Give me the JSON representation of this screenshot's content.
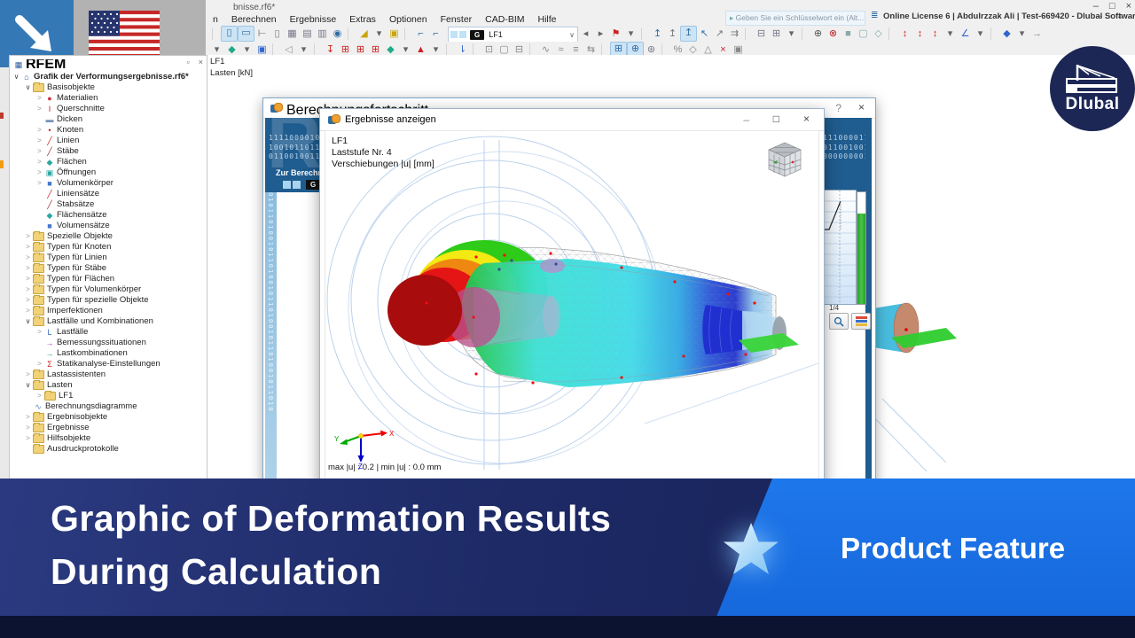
{
  "chrome": {
    "title": "bnisse.rf6*",
    "menus": [
      "n",
      "Berechnen",
      "Ergebnisse",
      "Extras",
      "Optionen",
      "Fenster",
      "CAD-BIM",
      "Hilfe"
    ],
    "search_placeholder": "Geben Sie ein Schlüsselwort ein (Alt...",
    "license": "Online License 6 | Abdulrzzak Ali | Test-669420 - Dlubal Software GmbH",
    "win_min": "–",
    "win_max": "□",
    "win_close": "×",
    "lic_min": "–",
    "lic_float": "▫",
    "lic_close": "×",
    "combo": {
      "badge": "G",
      "value": "LF1",
      "arrow": "∨"
    }
  },
  "toolbar1": [
    {
      "g": "↷",
      "c": "#666"
    },
    {
      "g": "▾",
      "c": "#666"
    },
    {
      "s": 1
    },
    {
      "g": "▯",
      "c": "#2e6da4",
      "a": 1
    },
    {
      "g": "▭",
      "c": "#2e6da4",
      "a": 1
    },
    {
      "g": "⊢",
      "c": "#666"
    },
    {
      "g": "▯",
      "c": "#778"
    },
    {
      "g": "▦",
      "c": "#778"
    },
    {
      "g": "▤",
      "c": "#778"
    },
    {
      "g": "▥",
      "c": "#778"
    },
    {
      "g": "◉",
      "c": "#2e6da4"
    },
    {
      "s": 1
    },
    {
      "g": "◢",
      "c": "#c9a50a"
    },
    {
      "g": "▾",
      "c": "#666"
    },
    {
      "g": "▣",
      "c": "#c9a50a"
    },
    {
      "s": 1
    },
    {
      "g": "⌐",
      "c": "#2e6da4"
    },
    {
      "g": "⌐",
      "c": "#2e6da4"
    }
  ],
  "toolbar1b": [
    {
      "g": "◂",
      "c": "#666"
    },
    {
      "g": "▸",
      "c": "#666"
    },
    {
      "g": "⚑",
      "c": "#c22"
    },
    {
      "g": "▾",
      "c": "#666"
    },
    {
      "s": 1
    },
    {
      "g": "↥",
      "c": "#2e6da4"
    },
    {
      "g": "↥",
      "c": "#777"
    },
    {
      "g": "↥",
      "c": "#2e6da4",
      "a": 1
    },
    {
      "g": "↖",
      "c": "#2e6da4"
    },
    {
      "g": "↗",
      "c": "#777"
    },
    {
      "g": "⇉",
      "c": "#777"
    },
    {
      "s": 1
    },
    {
      "g": "⊟",
      "c": "#778"
    },
    {
      "g": "⊞",
      "c": "#778"
    },
    {
      "g": "▾",
      "c": "#666"
    },
    {
      "s": 1
    },
    {
      "g": "⊕",
      "c": "#555"
    },
    {
      "g": "⊗",
      "c": "#b22"
    },
    {
      "g": "■",
      "c": "#8aa"
    },
    {
      "g": "▢",
      "c": "#8aa"
    },
    {
      "g": "◇",
      "c": "#8aa"
    },
    {
      "s": 1
    },
    {
      "g": "↕",
      "c": "#c22"
    },
    {
      "g": "↕",
      "c": "#c22"
    },
    {
      "g": "↕",
      "c": "#c22"
    },
    {
      "g": "▾",
      "c": "#666"
    },
    {
      "g": "∠",
      "c": "#36c"
    },
    {
      "g": "▾",
      "c": "#666"
    },
    {
      "s": 1
    },
    {
      "g": "◆",
      "c": "#36c"
    },
    {
      "g": "▾",
      "c": "#666"
    },
    {
      "g": "→",
      "c": "#888"
    },
    {
      "g": "▾",
      "c": "#666"
    },
    {
      "g": "×",
      "c": "#c22"
    },
    {
      "g": "■",
      "c": "#e8882a"
    }
  ],
  "toolbar2": [
    {
      "g": "▾",
      "c": "#666"
    },
    {
      "g": "▢",
      "c": "#d60"
    },
    {
      "g": "▾",
      "c": "#666"
    },
    {
      "g": "◆",
      "c": "#2a8"
    },
    {
      "g": "▾",
      "c": "#666"
    },
    {
      "g": "▣",
      "c": "#36c"
    },
    {
      "s": 1
    },
    {
      "g": "◁",
      "c": "#999"
    },
    {
      "g": "▾",
      "c": "#666"
    },
    {
      "s": 1
    },
    {
      "g": "↧",
      "c": "#c22"
    },
    {
      "g": "⊞",
      "c": "#c22"
    },
    {
      "g": "⊞",
      "c": "#c22"
    },
    {
      "g": "⊞",
      "c": "#c22"
    },
    {
      "g": "◆",
      "c": "#2a8"
    },
    {
      "g": "▾",
      "c": "#666"
    },
    {
      "g": "▲",
      "c": "#c22"
    },
    {
      "g": "▾",
      "c": "#666"
    },
    {
      "s": 1
    },
    {
      "g": "⇂",
      "c": "#36c"
    },
    {
      "s": 1
    },
    {
      "g": "⊡",
      "c": "#888"
    },
    {
      "g": "▢",
      "c": "#888"
    },
    {
      "g": "⊟",
      "c": "#888"
    },
    {
      "s": 1
    },
    {
      "g": "∿",
      "c": "#888"
    },
    {
      "g": "≈",
      "c": "#888"
    },
    {
      "g": "≡",
      "c": "#888"
    },
    {
      "g": "⇆",
      "c": "#888"
    },
    {
      "s": 1
    },
    {
      "g": "⊞",
      "c": "#2e6da4",
      "a": 1
    },
    {
      "g": "⊕",
      "c": "#2e6da4",
      "a": 1
    },
    {
      "g": "⊛",
      "c": "#778"
    },
    {
      "s": 1
    },
    {
      "g": "%",
      "c": "#888"
    },
    {
      "g": "◇",
      "c": "#888"
    },
    {
      "g": "△",
      "c": "#888"
    },
    {
      "g": "×",
      "c": "#c22"
    },
    {
      "g": "▣",
      "c": "#888"
    }
  ],
  "navigator": {
    "root": "RFEM",
    "items": [
      {
        "label": "Grafik der Verformungsergebnisse.rf6*",
        "lvl": 1,
        "chev": "∨",
        "g": "⌂",
        "c": "#2b5aa0",
        "bold": 1
      },
      {
        "label": "Basisobjekte",
        "lvl": 2,
        "chev": "∨",
        "folder": 1
      },
      {
        "label": "Materialien",
        "lvl": 3,
        "chev": ">",
        "g": "●",
        "c": "#cc3344"
      },
      {
        "label": "Querschnitte",
        "lvl": 3,
        "chev": ">",
        "g": "I",
        "c": "#cc2222"
      },
      {
        "label": "Dicken",
        "lvl": 3,
        "chev": "",
        "g": "▬",
        "c": "#7a93b8"
      },
      {
        "label": "Knoten",
        "lvl": 3,
        "chev": ">",
        "g": "•",
        "c": "#cc2222"
      },
      {
        "label": "Linien",
        "lvl": 3,
        "chev": ">",
        "g": "╱",
        "c": "#cc2222"
      },
      {
        "label": "Stäbe",
        "lvl": 3,
        "chev": ">",
        "g": "╱",
        "c": "#993333"
      },
      {
        "label": "Flächen",
        "lvl": 3,
        "chev": ">",
        "g": "◆",
        "c": "#2aa7a0"
      },
      {
        "label": "Öffnungen",
        "lvl": 3,
        "chev": ">",
        "g": "▣",
        "c": "#2aa7a0"
      },
      {
        "label": "Volumenkörper",
        "lvl": 3,
        "chev": ">",
        "g": "■",
        "c": "#4477cc"
      },
      {
        "label": "Liniensätze",
        "lvl": 3,
        "chev": "",
        "g": "╱",
        "c": "#cc2222"
      },
      {
        "label": "Stabsätze",
        "lvl": 3,
        "chev": "",
        "g": "╱",
        "c": "#993333"
      },
      {
        "label": "Flächensätze",
        "lvl": 3,
        "chev": "",
        "g": "◆",
        "c": "#2aa7a0"
      },
      {
        "label": "Volumensätze",
        "lvl": 3,
        "chev": "",
        "g": "■",
        "c": "#4477cc"
      },
      {
        "label": "Spezielle Objekte",
        "lvl": 2,
        "chev": ">",
        "folder": 1
      },
      {
        "label": "Typen für Knoten",
        "lvl": 2,
        "chev": ">",
        "folder": 1
      },
      {
        "label": "Typen für Linien",
        "lvl": 2,
        "chev": ">",
        "folder": 1
      },
      {
        "label": "Typen für Stäbe",
        "lvl": 2,
        "chev": ">",
        "folder": 1
      },
      {
        "label": "Typen für Flächen",
        "lvl": 2,
        "chev": ">",
        "folder": 1
      },
      {
        "label": "Typen für Volumenkörper",
        "lvl": 2,
        "chev": ">",
        "folder": 1
      },
      {
        "label": "Typen für spezielle Objekte",
        "lvl": 2,
        "chev": ">",
        "folder": 1
      },
      {
        "label": "Imperfektionen",
        "lvl": 2,
        "chev": ">",
        "folder": 1
      },
      {
        "label": "Lastfälle und Kombinationen",
        "lvl": 2,
        "chev": "∨",
        "folder": 1
      },
      {
        "label": "Lastfälle",
        "lvl": 3,
        "chev": ">",
        "g": "L",
        "c": "#3366cc"
      },
      {
        "label": "Bemessungssituationen",
        "lvl": 3,
        "chev": "",
        "g": "→",
        "c": "#aa33cc"
      },
      {
        "label": "Lastkombinationen",
        "lvl": 3,
        "chev": "",
        "g": "→",
        "c": "#22aa66"
      },
      {
        "label": "Statikanalyse-Einstellungen",
        "lvl": 3,
        "chev": ">",
        "g": "Σ",
        "c": "#cc2222"
      },
      {
        "label": "Lastassistenten",
        "lvl": 2,
        "chev": ">",
        "folder": 1
      },
      {
        "label": "Lasten",
        "lvl": 2,
        "chev": "∨",
        "folder": 1
      },
      {
        "label": "LF1",
        "lvl": 3,
        "chev": ">",
        "folder": 1
      },
      {
        "label": "Berechnungsdiagramme",
        "lvl": 2,
        "chev": "",
        "g": "∿",
        "c": "#5588bb"
      },
      {
        "label": "Ergebnisobjekte",
        "lvl": 2,
        "chev": ">",
        "folder": 1
      },
      {
        "label": "Ergebnisse",
        "lvl": 2,
        "chev": ">",
        "folder": 1
      },
      {
        "label": "Hilfsobjekte",
        "lvl": 2,
        "chev": ">",
        "folder": 1
      },
      {
        "label": "Ausdruckprotokolle",
        "lvl": 2,
        "chev": "",
        "folder": 1
      }
    ]
  },
  "canvas_labels": {
    "lf": "LF1",
    "load": "Lasten [kN]"
  },
  "calc_dialog": {
    "title": "Berechnungsfortschritt",
    "help": "?",
    "close": "×",
    "pending": "Zur Berechnun",
    "badge": "G",
    "binary_left": [
      "1111000010",
      "1001011011",
      "0110010011"
    ],
    "binary_right": [
      "1110000111",
      "0110010010",
      "0000000010"
    ],
    "strip_bits": "0101101001011010010110100101101001011010",
    "fraction": "1/4"
  },
  "results_dialog": {
    "title": "Ergebnisse anzeigen",
    "min": "–",
    "max": "□",
    "close": "×",
    "info_lines": [
      "LF1",
      "Laststufe Nr. 4",
      "Verschiebungen |u| [mm]"
    ],
    "status": "max |u| : 0.2 | min |u| : 0.0 mm",
    "axis_x": "X",
    "axis_y": "Y",
    "axis_z": "Z"
  },
  "banner": {
    "line1": "Graphic of Deformation Results",
    "line2": "During Calculation",
    "tag": "Product Feature",
    "colors": {
      "dark": "#1d2a66",
      "light": "#1a6de4",
      "strip": "#0c1330"
    }
  },
  "logo": {
    "brand": "Dlubal"
  }
}
